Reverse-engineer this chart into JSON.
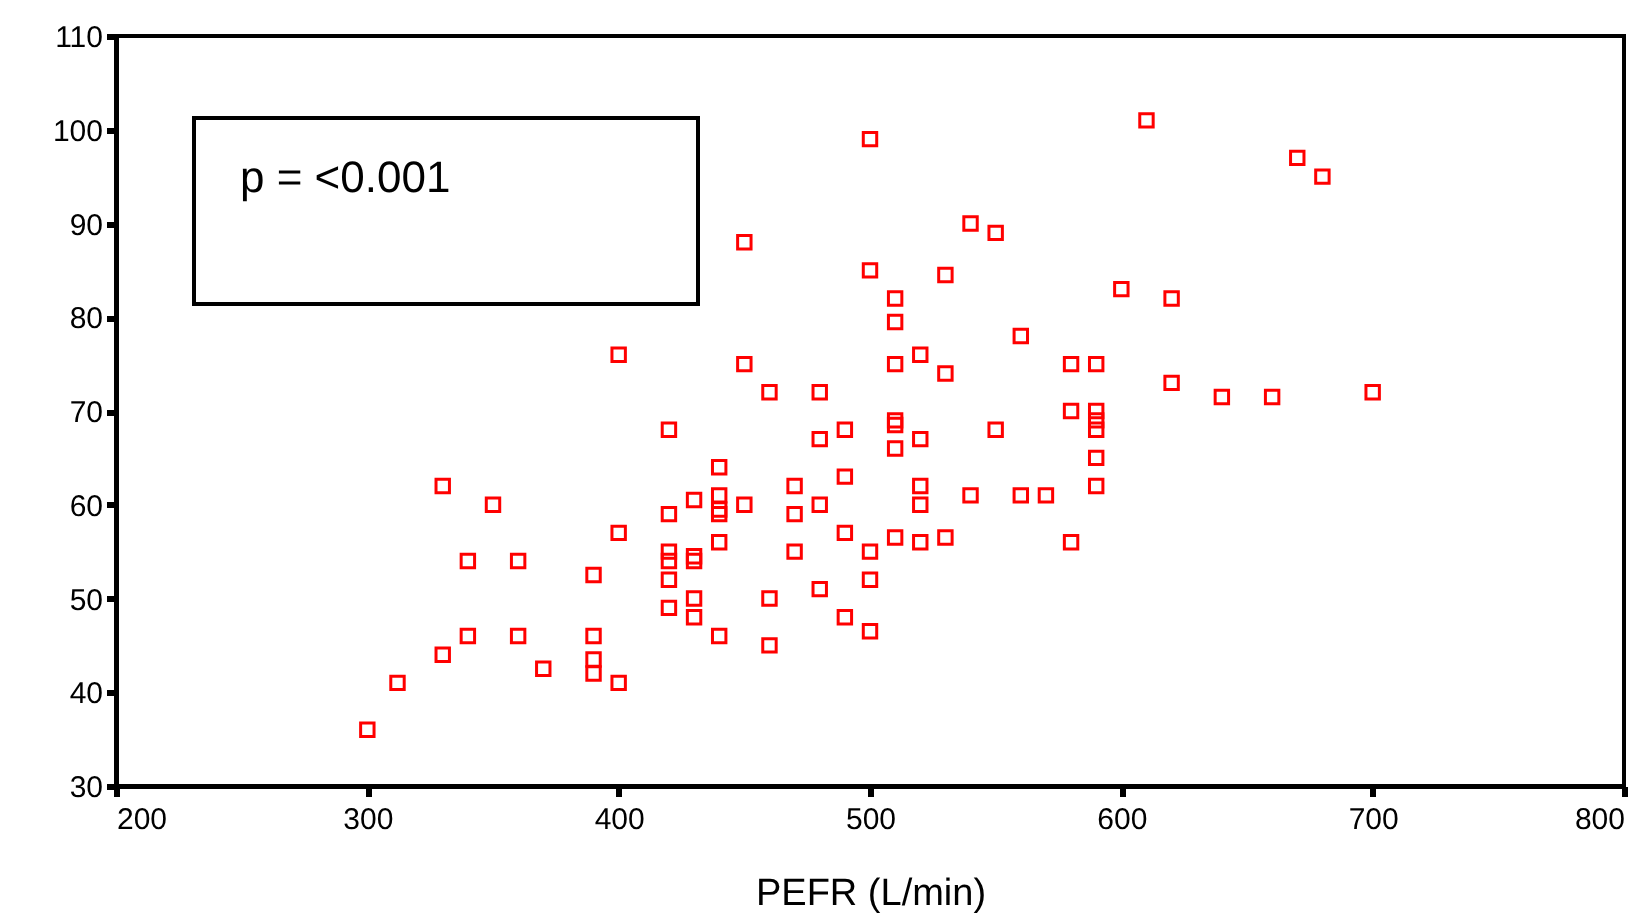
{
  "chart_data": {
    "type": "scatter",
    "xlabel": "PEFR (L/min)",
    "annotations": [
      "p = <0.001"
    ],
    "xlim": [
      200,
      800
    ],
    "xticks": [
      200,
      300,
      400,
      500,
      600,
      700,
      800
    ],
    "ylim": [
      30,
      110
    ],
    "yticks": [
      30,
      40,
      50,
      60,
      70,
      80,
      90,
      100,
      110
    ],
    "grid": false,
    "marker": "square",
    "series": [
      {
        "color": "#ff0000",
        "x": [
          300,
          312,
          330,
          330,
          340,
          340,
          350,
          360,
          360,
          370,
          390,
          390,
          390,
          390,
          400,
          400,
          400,
          420,
          420,
          420,
          420,
          420,
          420,
          430,
          430,
          430,
          430,
          430,
          440,
          440,
          440,
          440,
          440,
          440,
          450,
          450,
          450,
          460,
          460,
          460,
          470,
          470,
          470,
          480,
          480,
          480,
          480,
          490,
          490,
          490,
          490,
          500,
          500,
          500,
          500,
          500,
          510,
          510,
          510,
          510,
          510,
          510,
          510,
          520,
          520,
          520,
          520,
          520,
          530,
          530,
          530,
          540,
          540,
          550,
          550,
          560,
          560,
          570,
          580,
          580,
          580,
          590,
          590,
          590,
          590,
          590,
          590,
          600,
          610,
          620,
          620,
          640,
          660,
          670,
          680,
          700
        ],
        "values": [
          36,
          41,
          44,
          62,
          46,
          54,
          60,
          46,
          54,
          42.5,
          52.5,
          46,
          43.5,
          42,
          41,
          57,
          76,
          68,
          59,
          55,
          54,
          52,
          49,
          60.5,
          54,
          54.5,
          50,
          48,
          64,
          61,
          59.5,
          59,
          56,
          46,
          88,
          75,
          60,
          72,
          50,
          45,
          62,
          59,
          55,
          72,
          67,
          60,
          51,
          68,
          63,
          57,
          48,
          99,
          85,
          55,
          52,
          46.5,
          82,
          79.5,
          75,
          69,
          68.5,
          66,
          56.5,
          76,
          67,
          62,
          60,
          56,
          84.5,
          74,
          56.5,
          90,
          61,
          89,
          68,
          78,
          61,
          61,
          75,
          70,
          56,
          75,
          70,
          69,
          68,
          65,
          62,
          83,
          101,
          82,
          73,
          71.5,
          71.5,
          97,
          95,
          72
        ]
      }
    ]
  }
}
